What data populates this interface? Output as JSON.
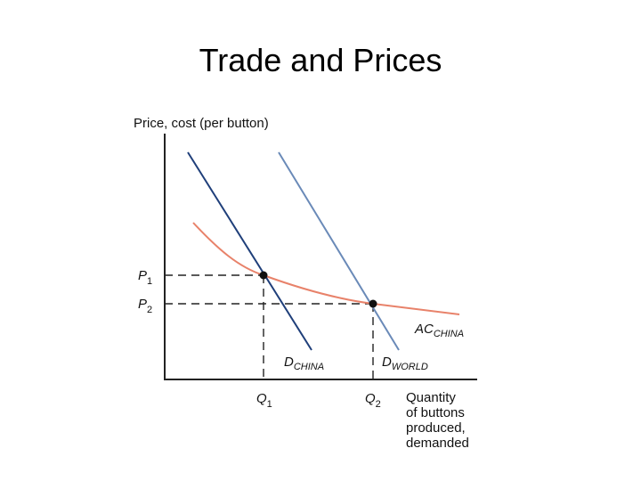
{
  "header": {
    "title": "Trade and Prices"
  },
  "diagram": {
    "y_axis_label": "Price, cost (per button)",
    "x_axis_label": [
      "Quantity",
      "of buttons",
      "produced,",
      "demanded"
    ],
    "price_labels": [
      {
        "main": "P",
        "sub": "1"
      },
      {
        "main": "P",
        "sub": "2"
      }
    ],
    "quantity_labels": [
      {
        "main": "Q",
        "sub": "1"
      },
      {
        "main": "Q",
        "sub": "2"
      }
    ],
    "curve_labels": {
      "demand_china": {
        "main": "D",
        "sub": "CHINA"
      },
      "demand_world": {
        "main": "D",
        "sub": "WORLD"
      },
      "average_cost": {
        "main": "AC",
        "sub": "CHINA"
      }
    }
  }
}
